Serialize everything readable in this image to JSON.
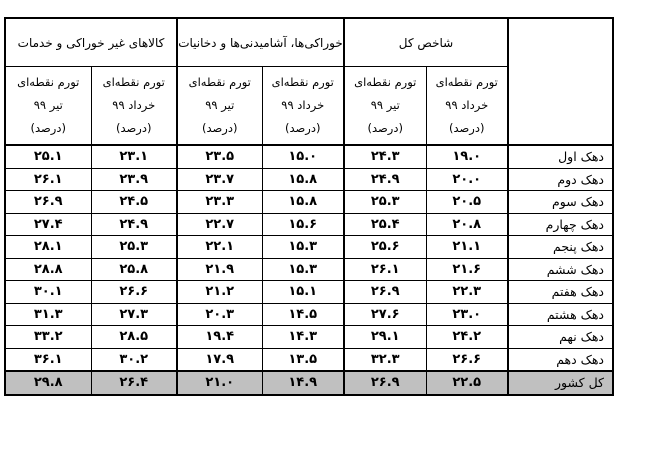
{
  "table": {
    "groups": [
      {
        "label": "شاخص کل"
      },
      {
        "label": "خوراکی‌ها، آشامیدنی‌ها و دخانیات"
      },
      {
        "label": "کالاهای غیر خوراکی و خدمات"
      }
    ],
    "subheaders": {
      "khordad": [
        "تورم نقطه‌ای",
        "خرداد ۹۹",
        "(درصد)"
      ],
      "tir": [
        "تورم نقطه‌ای",
        "تیر ۹۹",
        "(درصد)"
      ]
    },
    "rows": [
      {
        "label": "دهک اول",
        "values": [
          "۱۹.۰",
          "۲۴.۳",
          "۱۵.۰",
          "۲۳.۵",
          "۲۳.۱",
          "۲۵.۱"
        ]
      },
      {
        "label": "دهک دوم",
        "values": [
          "۲۰.۰",
          "۲۴.۹",
          "۱۵.۸",
          "۲۳.۷",
          "۲۳.۹",
          "۲۶.۱"
        ]
      },
      {
        "label": "دهک سوم",
        "values": [
          "۲۰.۵",
          "۲۵.۳",
          "۱۵.۸",
          "۲۳.۳",
          "۲۴.۵",
          "۲۶.۹"
        ]
      },
      {
        "label": "دهک چهارم",
        "values": [
          "۲۰.۸",
          "۲۵.۴",
          "۱۵.۶",
          "۲۲.۷",
          "۲۴.۹",
          "۲۷.۴"
        ]
      },
      {
        "label": "دهک پنجم",
        "values": [
          "۲۱.۱",
          "۲۵.۶",
          "۱۵.۳",
          "۲۲.۱",
          "۲۵.۳",
          "۲۸.۱"
        ]
      },
      {
        "label": "دهک ششم",
        "values": [
          "۲۱.۶",
          "۲۶.۱",
          "۱۵.۳",
          "۲۱.۹",
          "۲۵.۸",
          "۲۸.۸"
        ]
      },
      {
        "label": "دهک هفتم",
        "values": [
          "۲۲.۳",
          "۲۶.۹",
          "۱۵.۱",
          "۲۱.۲",
          "۲۶.۶",
          "۳۰.۱"
        ]
      },
      {
        "label": "دهک هشتم",
        "values": [
          "۲۳.۰",
          "۲۷.۶",
          "۱۴.۵",
          "۲۰.۳",
          "۲۷.۳",
          "۳۱.۳"
        ]
      },
      {
        "label": "دهک نهم",
        "values": [
          "۲۴.۲",
          "۲۹.۱",
          "۱۴.۳",
          "۱۹.۴",
          "۲۸.۵",
          "۳۳.۲"
        ]
      },
      {
        "label": "دهک دهم",
        "values": [
          "۲۶.۶",
          "۳۲.۳",
          "۱۳.۵",
          "۱۷.۹",
          "۳۰.۲",
          "۳۶.۱"
        ]
      }
    ],
    "total": {
      "label": "کل کشور",
      "values": [
        "۲۲.۵",
        "۲۶.۹",
        "۱۴.۹",
        "۲۱.۰",
        "۲۶.۴",
        "۲۹.۸"
      ]
    },
    "colors": {
      "total_row_bg": "#c0c0c0",
      "border": "#000000"
    }
  }
}
